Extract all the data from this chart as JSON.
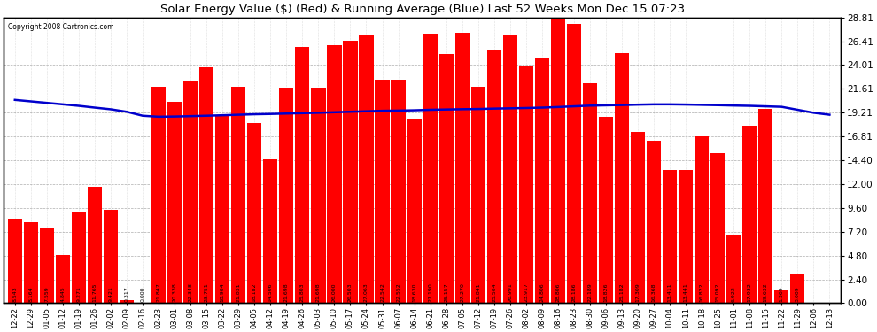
{
  "title": "Solar Energy Value ($) (Red) & Running Average (Blue) Last 52 Weeks Mon Dec 15 07:23",
  "copyright": "Copyright 2008 Cartronics.com",
  "bar_color": "#ff0000",
  "line_color": "#0000cc",
  "background_color": "#ffffff",
  "grid_color": "#999999",
  "ylabel_right": [
    "0.00",
    "2.40",
    "4.80",
    "7.20",
    "9.60",
    "12.00",
    "14.40",
    "16.81",
    "19.21",
    "21.61",
    "24.01",
    "26.41",
    "28.81"
  ],
  "yticks": [
    0.0,
    2.4,
    4.8,
    7.2,
    9.6,
    12.0,
    14.4,
    16.81,
    19.21,
    21.61,
    24.01,
    26.41,
    28.81
  ],
  "categories": [
    "12-22",
    "12-29",
    "01-05",
    "01-12",
    "01-19",
    "01-26",
    "02-02",
    "02-09",
    "02-16",
    "02-23",
    "03-01",
    "03-08",
    "03-15",
    "03-22",
    "03-29",
    "04-05",
    "04-12",
    "04-19",
    "04-26",
    "05-03",
    "05-10",
    "05-17",
    "05-24",
    "05-31",
    "06-07",
    "06-14",
    "06-21",
    "06-28",
    "07-05",
    "07-12",
    "07-19",
    "07-26",
    "08-02",
    "08-09",
    "08-16",
    "08-23",
    "08-30",
    "09-06",
    "09-13",
    "09-20",
    "09-27",
    "10-04",
    "10-11",
    "10-18",
    "10-25",
    "11-01",
    "11-08",
    "11-15",
    "11-22",
    "11-29",
    "12-06",
    "12-13"
  ],
  "bar_values": [
    8.543,
    8.164,
    7.559,
    4.845,
    9.271,
    11.765,
    9.421,
    0.317,
    0.0,
    21.847,
    20.338,
    22.348,
    23.751,
    18.904,
    21.831,
    18.182,
    14.506,
    21.698,
    25.803,
    21.698,
    26.0,
    26.503,
    27.063,
    22.542,
    22.552,
    18.63,
    27.19,
    25.157,
    27.27,
    21.841,
    25.504,
    26.991,
    23.917,
    24.806,
    28.806,
    28.186,
    22.189,
    18.826,
    25.182,
    17.309,
    16.368,
    13.411,
    13.441,
    16.822,
    15.092,
    6.922,
    17.932,
    19.632,
    1.369,
    3.009,
    0.0,
    0.0
  ],
  "bar_values_display": [
    "8.543",
    "8.164",
    "7.559",
    "4.845",
    "9.271",
    "11.765",
    "9.421",
    "0.317",
    "0.000",
    "21.847",
    "20.338",
    "22.348",
    "23.751",
    "18.904",
    "21.831",
    "18.182",
    "14.506",
    "21.698",
    "25.803",
    "21.698",
    "26.000",
    "26.503",
    "27.063",
    "22.542",
    "22.552",
    "18.630",
    "27.190",
    "25.157",
    "27.270",
    "21.841",
    "25.504",
    "26.991",
    "23.917",
    "24.806",
    "28.806",
    "28.186",
    "22.189",
    "18.826",
    "25.182",
    "17.309",
    "16.368",
    "13.411",
    "13.441",
    "16.822",
    "15.092",
    "6.922",
    "17.932",
    "19.632",
    "1.369",
    "3.009",
    "",
    ""
  ],
  "running_avg": [
    20.5,
    20.35,
    20.2,
    20.05,
    19.9,
    19.72,
    19.55,
    19.3,
    18.9,
    18.8,
    18.82,
    18.86,
    18.9,
    18.95,
    19.0,
    19.05,
    19.08,
    19.12,
    19.16,
    19.2,
    19.25,
    19.3,
    19.35,
    19.4,
    19.42,
    19.45,
    19.5,
    19.53,
    19.56,
    19.58,
    19.62,
    19.65,
    19.68,
    19.72,
    19.78,
    19.85,
    19.92,
    19.95,
    19.98,
    20.02,
    20.05,
    20.05,
    20.03,
    20.0,
    19.97,
    19.93,
    19.9,
    19.85,
    19.8,
    19.5,
    19.2,
    19.0
  ],
  "ymax": 28.81,
  "ymin": 0.0,
  "figwidth": 9.9,
  "figheight": 3.75,
  "dpi": 100
}
